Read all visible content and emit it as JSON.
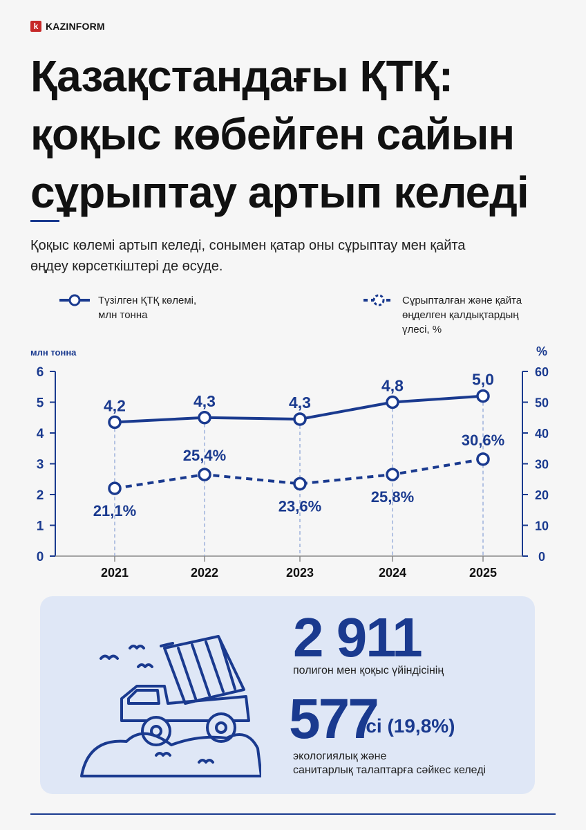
{
  "brand": {
    "mark": "k",
    "name": "KAZINFORM"
  },
  "title": "Қазақстандағы ҚТҚ: қоқыс көбейген сайын сұрыптау артып келеді",
  "subtitle": "Қоқыс көлемі артып келеді, сонымен қатар оны сұрыптау мен қайта өңдеу көрсеткіштері де өсуде.",
  "colors": {
    "accent": "#1a3a8f",
    "panel": "#dfe7f6"
  },
  "chart_data": {
    "type": "line",
    "x": [
      "2021",
      "2022",
      "2023",
      "2024",
      "2025"
    ],
    "left_axis": {
      "label": "млн тонна",
      "range": [
        0,
        6
      ],
      "ticks": [
        0,
        1,
        2,
        3,
        4,
        5,
        6
      ]
    },
    "right_axis": {
      "label": "%",
      "range": [
        0,
        60
      ],
      "ticks": [
        0,
        10,
        20,
        30,
        40,
        50,
        60
      ]
    },
    "series": [
      {
        "name": "Түзілген ҚТҚ көлемі,\nмлн тонна",
        "axis": "left",
        "style": "solid",
        "values": [
          4.2,
          4.3,
          4.3,
          4.8,
          5.0
        ],
        "labels": [
          "4,2",
          "4,3",
          "4,3",
          "4,8",
          "5,0"
        ],
        "plotted_values": [
          4.35,
          4.5,
          4.45,
          5.0,
          5.2
        ]
      },
      {
        "name": "Сұрыпталған және қайта\nөңделген қалдықтардың\nүлесі, %",
        "axis": "right",
        "style": "dashed",
        "values": [
          21.1,
          25.4,
          23.6,
          25.8,
          30.6
        ],
        "labels": [
          "21,1%",
          "25,4%",
          "23,6%",
          "25,8%",
          "30,6%"
        ],
        "plotted_values": [
          22,
          26.5,
          23.5,
          26.5,
          31.5
        ]
      }
    ],
    "grid": false,
    "legend": "top"
  },
  "stats": {
    "total_number": "2 911",
    "total_caption": "полигон мен қоқыс үйіндісінің",
    "compliant_number": "577",
    "compliant_suffix": "-сі (19,8%)",
    "compliant_caption": "экологиялық және\nсанитарлық талаптарға сәйкес келеді"
  }
}
